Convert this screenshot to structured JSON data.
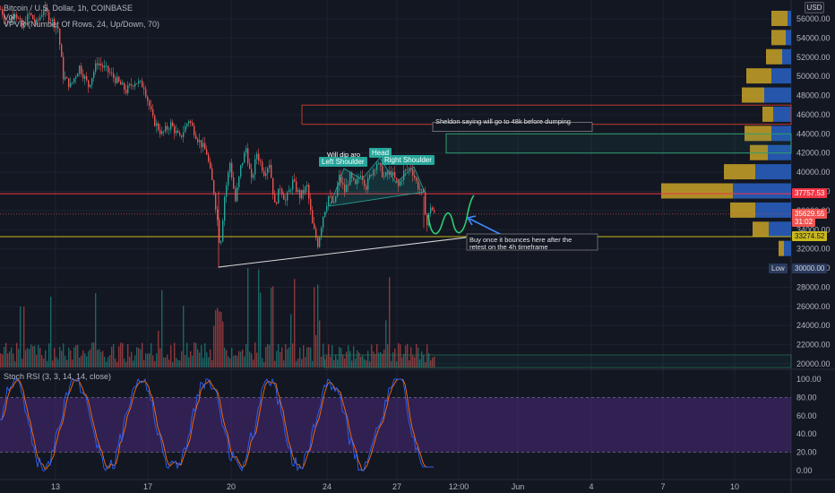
{
  "header": {
    "symbol": "Bitcoin / U.S. Dollar, 1h, COINBASE",
    "vol_label": "Vol",
    "vpvr_label": "VPVR (Number Of Rows, 24, Up/Down, 70)"
  },
  "currency_button": "USD",
  "price_axis": {
    "ticks": [
      "56000.00",
      "54000.00",
      "52000.00",
      "50000.00",
      "48000.00",
      "46000.00",
      "44000.00",
      "42000.00",
      "40000.00",
      "38000.00",
      "36000.00",
      "34000.00",
      "32000.00",
      "30000.00",
      "28000.00",
      "26000.00",
      "24000.00",
      "22000.00",
      "20000.00"
    ],
    "tick_values": [
      56000,
      54000,
      52000,
      50000,
      48000,
      46000,
      44000,
      42000,
      40000,
      38000,
      36000,
      34000,
      32000,
      30000,
      28000,
      26000,
      24000,
      22000,
      20000
    ]
  },
  "price_tags": {
    "red_line": "37757.53",
    "current": "35629.55",
    "countdown": "31:02",
    "yellow_line": "33274.52",
    "low_label": "Low",
    "low_value": "30000.00"
  },
  "rsi": {
    "label": "Stoch RSI (3, 3, 14, 14, close)",
    "ticks": [
      "100.00",
      "80.00",
      "60.00",
      "40.00",
      "20.00",
      "0.00"
    ],
    "tick_values": [
      100,
      80,
      60,
      40,
      20,
      0
    ]
  },
  "time_axis": [
    "13",
    "17",
    "20",
    "24",
    "27",
    "12:00",
    "Jun",
    "4",
    "7",
    "10"
  ],
  "annotations": {
    "left_shoulder": "Left Shoulder",
    "head": "Head",
    "right_shoulder": "Right Shoulder",
    "will_dip": "Will dip aro",
    "sheldon": "Sheldon saying will go to 48k before dumping",
    "buy_note_1": "Buy once it bounces here after the",
    "buy_note_2": "retest on the 4h timeframe"
  },
  "colors": {
    "background": "#131722",
    "up": "#26a69a",
    "down": "#ef5350",
    "red_line": "#f23645",
    "yellow_line": "#c9b81a",
    "vp_up": "#2962c4",
    "vp_down": "#c9a227",
    "rsi_k": "#2962ff",
    "rsi_d": "#ff6d00",
    "rsi_band": "#4a2a7a"
  },
  "chart_data": {
    "type": "candlestick",
    "price_range": [
      19000,
      57500
    ],
    "levels": {
      "resistance": 37757.53,
      "current": 35629.55,
      "support": 33274.52,
      "low": 30000.0
    },
    "zones": [
      {
        "name": "red-zone",
        "top": 47000,
        "bottom": 45000
      },
      {
        "name": "green-zone",
        "top": 44000,
        "bottom": 42000
      }
    ],
    "approx_path": [
      [
        0,
        57000
      ],
      [
        8,
        55500
      ],
      [
        16,
        56800
      ],
      [
        24,
        55000
      ],
      [
        32,
        56500
      ],
      [
        40,
        55500
      ],
      [
        48,
        57000
      ],
      [
        56,
        56000
      ],
      [
        64,
        55000
      ],
      [
        70,
        50000
      ],
      [
        78,
        49000
      ],
      [
        88,
        51000
      ],
      [
        98,
        49000
      ],
      [
        108,
        51500
      ],
      [
        120,
        50500
      ],
      [
        130,
        49500
      ],
      [
        140,
        48500
      ],
      [
        150,
        49500
      ],
      [
        160,
        49000
      ],
      [
        170,
        45500
      ],
      [
        180,
        44000
      ],
      [
        190,
        45000
      ],
      [
        200,
        43500
      ],
      [
        210,
        45500
      ],
      [
        220,
        43500
      ],
      [
        230,
        42000
      ],
      [
        238,
        38000
      ],
      [
        242,
        35000
      ],
      [
        245,
        32000
      ],
      [
        250,
        37500
      ],
      [
        256,
        41000
      ],
      [
        262,
        37000
      ],
      [
        268,
        40500
      ],
      [
        274,
        42500
      ],
      [
        280,
        39000
      ],
      [
        286,
        42000
      ],
      [
        294,
        40000
      ],
      [
        300,
        41000
      ],
      [
        306,
        36500
      ],
      [
        312,
        38500
      ],
      [
        318,
        37000
      ],
      [
        326,
        39000
      ],
      [
        334,
        37500
      ],
      [
        342,
        38500
      ],
      [
        348,
        34500
      ],
      [
        354,
        32500
      ],
      [
        360,
        35500
      ],
      [
        366,
        37500
      ],
      [
        372,
        36500
      ],
      [
        378,
        39500
      ],
      [
        384,
        38000
      ],
      [
        390,
        39500
      ],
      [
        396,
        38500
      ],
      [
        402,
        40000
      ],
      [
        408,
        38500
      ],
      [
        414,
        40000
      ],
      [
        420,
        41000
      ],
      [
        428,
        39500
      ],
      [
        436,
        40000
      ],
      [
        444,
        38500
      ],
      [
        450,
        40000
      ],
      [
        458,
        40500
      ],
      [
        466,
        38500
      ],
      [
        472,
        37500
      ],
      [
        476,
        34500
      ],
      [
        480,
        36500
      ],
      [
        484,
        35600
      ]
    ]
  }
}
